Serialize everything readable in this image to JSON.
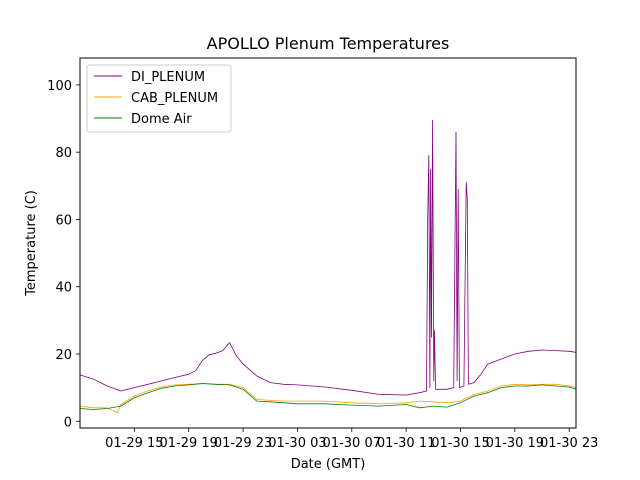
{
  "chart_data": {
    "type": "line",
    "title": "APOLLO Plenum Temperatures",
    "xlabel": "Date (GMT)",
    "ylabel": "Temperature (C)",
    "xlim": [
      "2019-01-29 11:00",
      "2019-01-30 23:30"
    ],
    "ylim": [
      -2,
      108
    ],
    "x_ticks": [
      {
        "t": "2019-01-29 15:00",
        "label": "01-29 15"
      },
      {
        "t": "2019-01-29 19:00",
        "label": "01-29 19"
      },
      {
        "t": "2019-01-29 23:00",
        "label": "01-29 23"
      },
      {
        "t": "2019-01-30 03:00",
        "label": "01-30 03"
      },
      {
        "t": "2019-01-30 07:00",
        "label": "01-30 07"
      },
      {
        "t": "2019-01-30 11:00",
        "label": "01-30 11"
      },
      {
        "t": "2019-01-30 15:00",
        "label": "01-30 15"
      },
      {
        "t": "2019-01-30 19:00",
        "label": "01-30 19"
      },
      {
        "t": "2019-01-30 23:00",
        "label": "01-30 23"
      }
    ],
    "y_ticks": [
      0,
      20,
      40,
      60,
      80,
      100
    ],
    "grid": false,
    "legend_position": "top-left",
    "series": [
      {
        "name": "DI_PLENUM",
        "color": "#800080",
        "points": [
          [
            "2019-01-29 11:00",
            13.8
          ],
          [
            "2019-01-29 12:00",
            12.5
          ],
          [
            "2019-01-29 13:00",
            10.5
          ],
          [
            "2019-01-29 14:00",
            9.0
          ],
          [
            "2019-01-29 15:00",
            10.0
          ],
          [
            "2019-01-29 16:00",
            11.0
          ],
          [
            "2019-01-29 17:00",
            12.0
          ],
          [
            "2019-01-29 18:00",
            13.0
          ],
          [
            "2019-01-29 19:00",
            14.0
          ],
          [
            "2019-01-29 19:30",
            15.0
          ],
          [
            "2019-01-29 20:00",
            18.0
          ],
          [
            "2019-01-29 20:30",
            19.8
          ],
          [
            "2019-01-29 21:00",
            20.2
          ],
          [
            "2019-01-29 21:30",
            21.0
          ],
          [
            "2019-01-29 22:00",
            23.4
          ],
          [
            "2019-01-29 22:30",
            19.5
          ],
          [
            "2019-01-29 23:00",
            17.0
          ],
          [
            "2019-01-30 00:00",
            13.5
          ],
          [
            "2019-01-30 01:00",
            11.5
          ],
          [
            "2019-01-30 02:00",
            11.0
          ],
          [
            "2019-01-30 03:00",
            10.8
          ],
          [
            "2019-01-30 05:00",
            10.2
          ],
          [
            "2019-01-30 07:00",
            9.2
          ],
          [
            "2019-01-30 09:00",
            8.0
          ],
          [
            "2019-01-30 11:00",
            7.8
          ],
          [
            "2019-01-30 12:00",
            8.5
          ],
          [
            "2019-01-30 12:30",
            9.0
          ],
          [
            "2019-01-30 12:35",
            60.0
          ],
          [
            "2019-01-30 12:40",
            79.0
          ],
          [
            "2019-01-30 12:45",
            10.0
          ],
          [
            "2019-01-30 12:48",
            75.0
          ],
          [
            "2019-01-30 12:52",
            25.0
          ],
          [
            "2019-01-30 12:57",
            89.5
          ],
          [
            "2019-01-30 13:02",
            12.0
          ],
          [
            "2019-01-30 13:05",
            27.0
          ],
          [
            "2019-01-30 13:10",
            9.5
          ],
          [
            "2019-01-30 14:00",
            9.5
          ],
          [
            "2019-01-30 14:30",
            10.0
          ],
          [
            "2019-01-30 14:40",
            86.0
          ],
          [
            "2019-01-30 14:45",
            12.0
          ],
          [
            "2019-01-30 14:50",
            69.0
          ],
          [
            "2019-01-30 14:55",
            10.0
          ],
          [
            "2019-01-30 15:15",
            10.5
          ],
          [
            "2019-01-30 15:25",
            71.0
          ],
          [
            "2019-01-30 15:30",
            66.0
          ],
          [
            "2019-01-30 15:35",
            11.0
          ],
          [
            "2019-01-30 16:00",
            11.5
          ],
          [
            "2019-01-30 16:30",
            14.0
          ],
          [
            "2019-01-30 17:00",
            17.0
          ],
          [
            "2019-01-30 18:00",
            18.5
          ],
          [
            "2019-01-30 19:00",
            20.0
          ],
          [
            "2019-01-30 20:00",
            20.8
          ],
          [
            "2019-01-30 21:00",
            21.2
          ],
          [
            "2019-01-30 22:00",
            21.0
          ],
          [
            "2019-01-30 23:00",
            20.8
          ],
          [
            "2019-01-30 23:30",
            20.5
          ]
        ]
      },
      {
        "name": "CAB_PLENUM",
        "color": "#ffa500",
        "points": [
          [
            "2019-01-29 11:00",
            4.5
          ],
          [
            "2019-01-29 12:00",
            4.0
          ],
          [
            "2019-01-29 13:00",
            4.0
          ],
          [
            "2019-01-29 13:45",
            2.5
          ],
          [
            "2019-01-29 14:00",
            5.0
          ],
          [
            "2019-01-29 15:00",
            7.5
          ],
          [
            "2019-01-29 16:00",
            9.0
          ],
          [
            "2019-01-29 17:00",
            10.2
          ],
          [
            "2019-01-29 18:00",
            10.8
          ],
          [
            "2019-01-29 19:00",
            11.0
          ],
          [
            "2019-01-29 20:00",
            11.3
          ],
          [
            "2019-01-29 21:00",
            11.0
          ],
          [
            "2019-01-29 22:00",
            11.0
          ],
          [
            "2019-01-29 23:00",
            10.0
          ],
          [
            "2019-01-30 00:00",
            6.5
          ],
          [
            "2019-01-30 01:00",
            6.2
          ],
          [
            "2019-01-30 02:00",
            6.0
          ],
          [
            "2019-01-30 03:00",
            6.0
          ],
          [
            "2019-01-30 05:00",
            6.0
          ],
          [
            "2019-01-30 07:00",
            5.5
          ],
          [
            "2019-01-30 09:00",
            5.2
          ],
          [
            "2019-01-30 11:00",
            5.5
          ],
          [
            "2019-01-30 12:00",
            6.0
          ],
          [
            "2019-01-30 13:00",
            5.8
          ],
          [
            "2019-01-30 14:00",
            5.5
          ],
          [
            "2019-01-30 15:00",
            6.0
          ],
          [
            "2019-01-30 16:00",
            8.0
          ],
          [
            "2019-01-30 17:00",
            9.0
          ],
          [
            "2019-01-30 18:00",
            10.5
          ],
          [
            "2019-01-30 19:00",
            11.0
          ],
          [
            "2019-01-30 20:00",
            10.8
          ],
          [
            "2019-01-30 21:00",
            11.0
          ],
          [
            "2019-01-30 22:00",
            11.0
          ],
          [
            "2019-01-30 23:00",
            10.5
          ],
          [
            "2019-01-30 23:30",
            10.0
          ]
        ]
      },
      {
        "name": "Dome Air",
        "color": "#008000",
        "points": [
          [
            "2019-01-29 11:00",
            3.8
          ],
          [
            "2019-01-29 12:00",
            3.5
          ],
          [
            "2019-01-29 13:00",
            3.8
          ],
          [
            "2019-01-29 14:00",
            4.5
          ],
          [
            "2019-01-29 15:00",
            7.0
          ],
          [
            "2019-01-29 16:00",
            8.5
          ],
          [
            "2019-01-29 17:00",
            9.8
          ],
          [
            "2019-01-29 18:00",
            10.5
          ],
          [
            "2019-01-29 19:00",
            10.8
          ],
          [
            "2019-01-29 20:00",
            11.2
          ],
          [
            "2019-01-29 21:00",
            11.0
          ],
          [
            "2019-01-29 22:00",
            10.8
          ],
          [
            "2019-01-29 23:00",
            9.5
          ],
          [
            "2019-01-30 00:00",
            6.0
          ],
          [
            "2019-01-30 01:00",
            5.8
          ],
          [
            "2019-01-30 02:00",
            5.5
          ],
          [
            "2019-01-30 03:00",
            5.2
          ],
          [
            "2019-01-30 05:00",
            5.2
          ],
          [
            "2019-01-30 07:00",
            4.8
          ],
          [
            "2019-01-30 09:00",
            4.5
          ],
          [
            "2019-01-30 11:00",
            5.0
          ],
          [
            "2019-01-30 12:00",
            4.0
          ],
          [
            "2019-01-30 13:00",
            4.5
          ],
          [
            "2019-01-30 14:00",
            4.2
          ],
          [
            "2019-01-30 15:00",
            5.5
          ],
          [
            "2019-01-30 16:00",
            7.5
          ],
          [
            "2019-01-30 17:00",
            8.5
          ],
          [
            "2019-01-30 18:00",
            10.0
          ],
          [
            "2019-01-30 19:00",
            10.5
          ],
          [
            "2019-01-30 20:00",
            10.5
          ],
          [
            "2019-01-30 21:00",
            10.8
          ],
          [
            "2019-01-30 22:00",
            10.5
          ],
          [
            "2019-01-30 23:00",
            10.2
          ],
          [
            "2019-01-30 23:30",
            9.5
          ]
        ]
      }
    ]
  }
}
